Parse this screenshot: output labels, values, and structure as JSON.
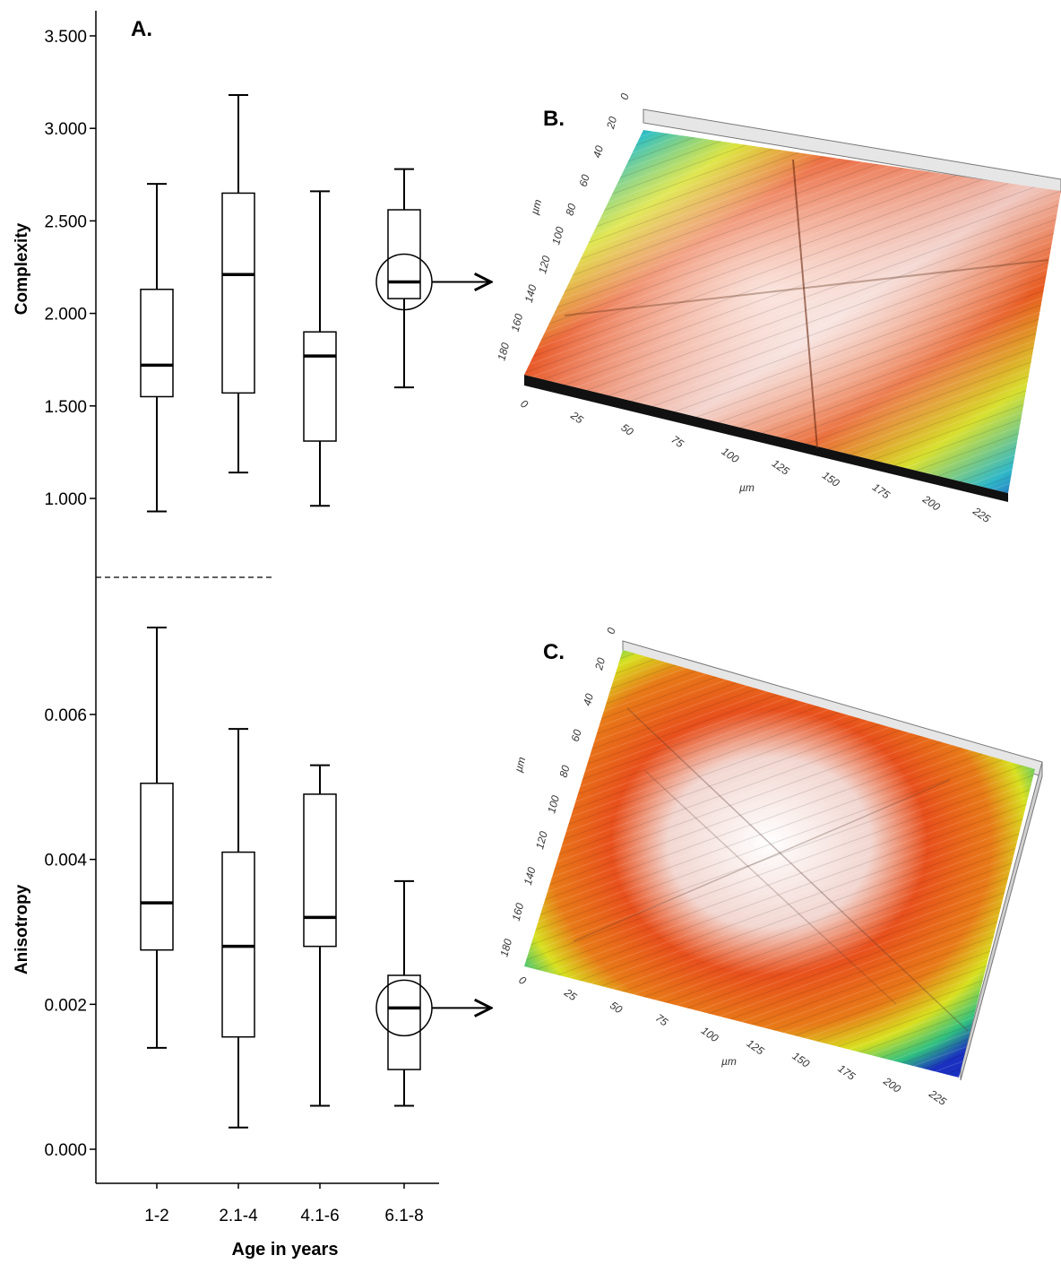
{
  "panel_labels": {
    "a": "A.",
    "b": "B.",
    "c": "C."
  },
  "chart_data": {
    "type": "box",
    "xlabel": "Age in years",
    "categories": [
      "1-2",
      "2.1-4",
      "4.1-6",
      "6.1-8"
    ],
    "panels": [
      {
        "ylabel": "Complexity",
        "ylim": [
          0.55,
          3.6
        ],
        "yticks": [
          1.0,
          1.5,
          2.0,
          2.5,
          3.0,
          3.5
        ],
        "yticklabels": [
          "1.000",
          "1.500",
          "2.000",
          "2.500",
          "3.000",
          "3.500"
        ],
        "boxes": [
          {
            "min": 0.93,
            "q1": 1.55,
            "median": 1.72,
            "q3": 2.13,
            "max": 2.7
          },
          {
            "min": 1.14,
            "q1": 1.57,
            "median": 2.21,
            "q3": 2.65,
            "max": 3.18
          },
          {
            "min": 0.96,
            "q1": 1.31,
            "median": 1.77,
            "q3": 1.9,
            "max": 2.66
          },
          {
            "min": 1.6,
            "q1": 2.08,
            "median": 2.17,
            "q3": 2.56,
            "max": 2.78
          }
        ],
        "highlight_category": "6.1-8"
      },
      {
        "ylabel": "Anisotropy",
        "ylim": [
          -0.0004,
          0.0074
        ],
        "yticks": [
          0.0,
          0.002,
          0.004,
          0.006
        ],
        "yticklabels": [
          "0.000",
          "0.002",
          "0.004",
          "0.006"
        ],
        "boxes": [
          {
            "min": 0.0014,
            "q1": 0.00275,
            "median": 0.0034,
            "q3": 0.00505,
            "max": 0.0072
          },
          {
            "min": 0.0003,
            "q1": 0.00155,
            "median": 0.0028,
            "q3": 0.0041,
            "max": 0.0058
          },
          {
            "min": 0.0006,
            "q1": 0.0028,
            "median": 0.0032,
            "q3": 0.0049,
            "max": 0.0053
          },
          {
            "min": 0.0006,
            "q1": 0.0011,
            "median": 0.00195,
            "q3": 0.0024,
            "max": 0.0037
          }
        ],
        "highlight_category": "6.1-8"
      }
    ]
  },
  "surface_plots": [
    {
      "panel": "B.",
      "unit_label": "µm",
      "x_ticks": [
        "0",
        "25",
        "50",
        "75",
        "100",
        "125",
        "150",
        "175",
        "200",
        "225"
      ],
      "y_ticks": [
        "0",
        "20",
        "40",
        "60",
        "80",
        "100",
        "120",
        "140",
        "160",
        "180"
      ]
    },
    {
      "panel": "C.",
      "unit_label": "µm",
      "x_ticks": [
        "0",
        "25",
        "50",
        "75",
        "100",
        "125",
        "150",
        "175",
        "200",
        "225"
      ],
      "y_ticks": [
        "0",
        "20",
        "40",
        "60",
        "80",
        "100",
        "120",
        "140",
        "160",
        "180"
      ]
    }
  ],
  "colors": {
    "axis": "#000000",
    "box_fill": "#ffffff",
    "surface_low": "#1a3cc8",
    "surface_mid": "#e5e520",
    "surface_high": "#e8401a",
    "surface_top": "#ffffff"
  }
}
